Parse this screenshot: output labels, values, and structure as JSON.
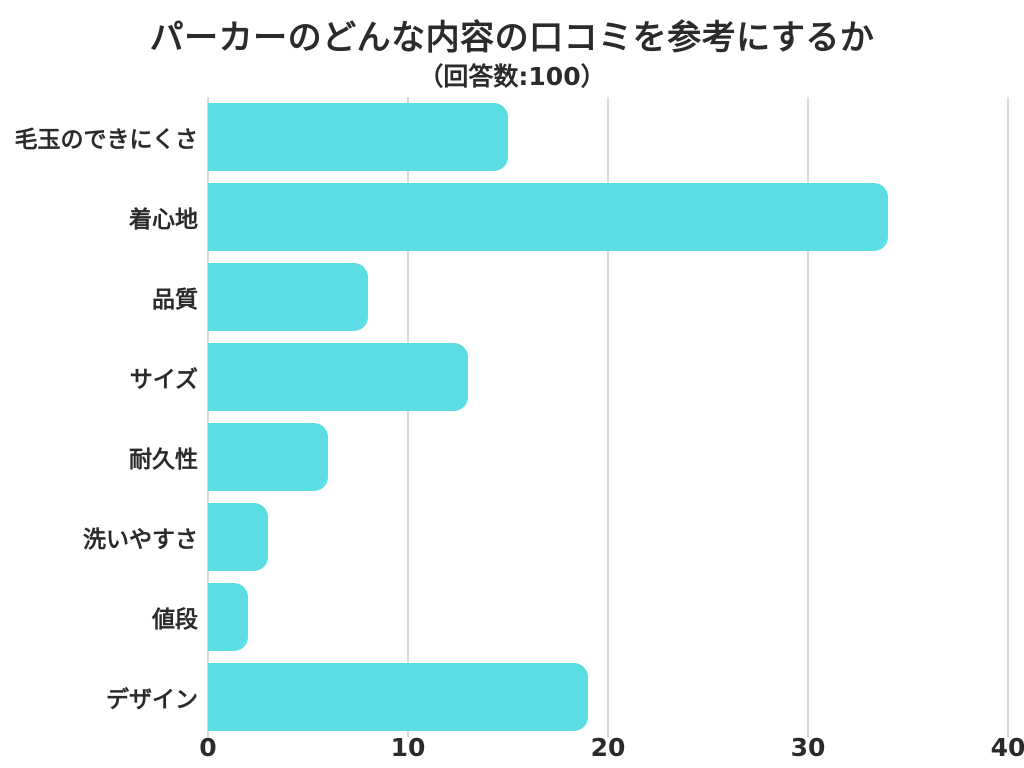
{
  "chart_data": {
    "type": "bar",
    "orientation": "horizontal",
    "title": "パーカーのどんな内容の口コミを参考にするか",
    "subtitle": "（回答数:100）",
    "categories": [
      "毛玉のできにくさ",
      "着心地",
      "品質",
      "サイズ",
      "耐久性",
      "洗いやすさ",
      "値段",
      "デザイン"
    ],
    "values": [
      15,
      34,
      8,
      13,
      6,
      3,
      2,
      19
    ],
    "xlabel": "",
    "ylabel": "",
    "xlim": [
      0,
      40
    ],
    "xticks": [
      0,
      10,
      20,
      30,
      40
    ],
    "grid": true,
    "legend": "none",
    "bar_color": "#5CDDE4",
    "gridline_color": "#dadada",
    "text_color": "#2b2b2b",
    "background_color": "#ffffff"
  }
}
